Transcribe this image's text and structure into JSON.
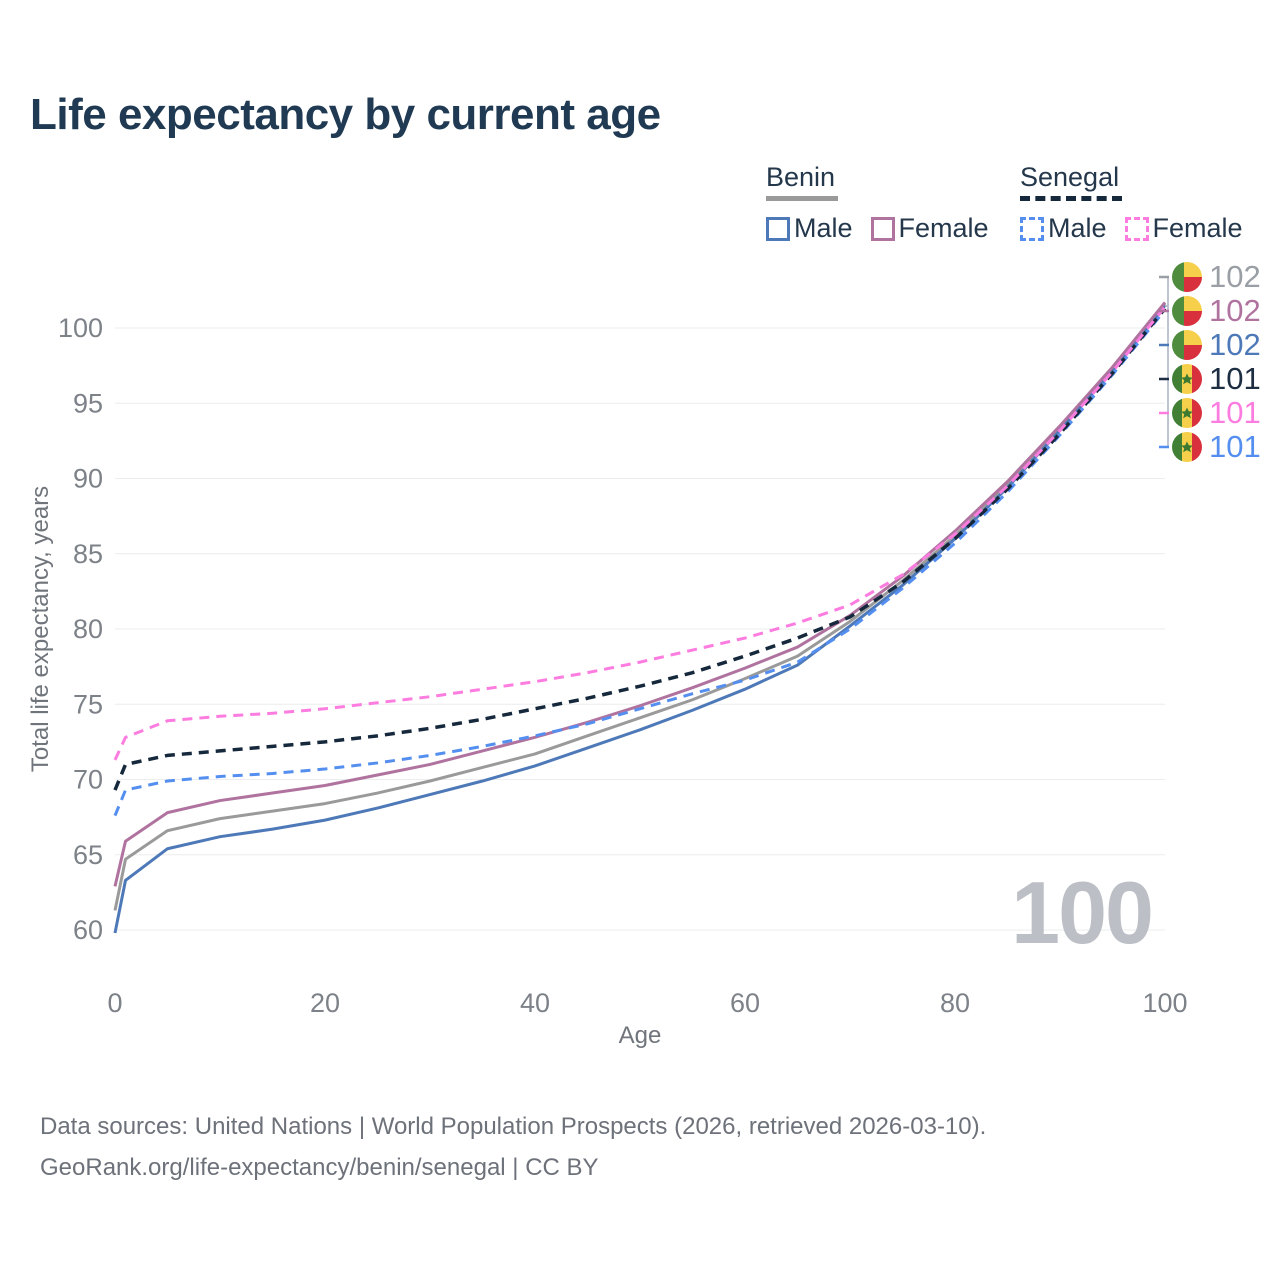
{
  "title": "Life expectancy by current age",
  "legend": {
    "groups": [
      {
        "label": "Benin",
        "line_style": "solid",
        "underline_color": "#9a9a9a",
        "items": [
          {
            "label": "Male",
            "color": "#4e79b8"
          },
          {
            "label": "Female",
            "color": "#b0739f"
          }
        ]
      },
      {
        "label": "Senegal",
        "line_style": "dashed",
        "underline_color": "#16283c",
        "items": [
          {
            "label": "Male",
            "color": "#548ff0"
          },
          {
            "label": "Female",
            "color": "#fc7ce0"
          }
        ]
      }
    ]
  },
  "chart_data": {
    "type": "line",
    "title": "Life expectancy by current age",
    "xlabel": "Age",
    "ylabel": "Total life expectancy, years",
    "xlim": [
      0,
      100
    ],
    "ylim": [
      60,
      100
    ],
    "xticks": [
      0,
      20,
      40,
      60,
      80,
      100
    ],
    "yticks": [
      60,
      65,
      70,
      75,
      80,
      85,
      90,
      95,
      100
    ],
    "grid": "horizontal",
    "legend_position": "top-right",
    "x": [
      0,
      1,
      5,
      10,
      15,
      20,
      25,
      30,
      35,
      40,
      45,
      50,
      55,
      60,
      65,
      70,
      75,
      80,
      85,
      90,
      95,
      100
    ],
    "series": [
      {
        "name": "Benin Both sexes",
        "country": "Benin",
        "sex": "Both",
        "color": "#9a9a9a",
        "dash": false,
        "width": 3,
        "values": [
          61.3,
          64.7,
          66.6,
          67.4,
          67.9,
          68.4,
          69.1,
          69.9,
          70.8,
          71.7,
          72.9,
          74.1,
          75.3,
          76.7,
          78.2,
          80.5,
          83.2,
          86.2,
          89.6,
          93.3,
          97.3,
          101.6
        ]
      },
      {
        "name": "Benin Male",
        "country": "Benin",
        "sex": "Male",
        "color": "#4e79b8",
        "dash": false,
        "width": 3,
        "values": [
          59.8,
          63.3,
          65.4,
          66.2,
          66.7,
          67.3,
          68.1,
          69.0,
          69.9,
          70.9,
          72.1,
          73.3,
          74.6,
          76.0,
          77.6,
          80.2,
          82.9,
          86.0,
          89.4,
          93.2,
          97.2,
          101.5
        ]
      },
      {
        "name": "Benin Female",
        "country": "Benin",
        "sex": "Female",
        "color": "#b0739f",
        "dash": false,
        "width": 3,
        "values": [
          62.9,
          65.9,
          67.8,
          68.6,
          69.1,
          69.6,
          70.3,
          71.0,
          71.9,
          72.8,
          73.8,
          74.9,
          76.1,
          77.4,
          78.8,
          80.9,
          83.5,
          86.5,
          89.8,
          93.5,
          97.4,
          101.7
        ]
      },
      {
        "name": "Senegal Male",
        "country": "Senegal",
        "sex": "Male",
        "color": "#548ff0",
        "dash": true,
        "width": 3,
        "values": [
          67.6,
          69.3,
          69.9,
          70.2,
          70.4,
          70.7,
          71.1,
          71.6,
          72.2,
          72.9,
          73.7,
          74.7,
          75.7,
          76.6,
          77.8,
          80.0,
          82.7,
          85.7,
          89.1,
          92.9,
          96.9,
          101.2
        ]
      },
      {
        "name": "Senegal Both sexes",
        "country": "Senegal",
        "sex": "Both",
        "color": "#16283c",
        "dash": true,
        "width": 3.5,
        "values": [
          69.3,
          71.0,
          71.6,
          71.9,
          72.2,
          72.5,
          72.9,
          73.4,
          74.0,
          74.7,
          75.4,
          76.2,
          77.1,
          78.2,
          79.4,
          80.8,
          83.1,
          86.0,
          89.3,
          93.0,
          97.0,
          101.3
        ]
      },
      {
        "name": "Senegal Female",
        "country": "Senegal",
        "sex": "Female",
        "color": "#fc7ce0",
        "dash": true,
        "width": 3,
        "values": [
          71.3,
          72.8,
          73.9,
          74.2,
          74.4,
          74.7,
          75.1,
          75.5,
          76.0,
          76.5,
          77.1,
          77.8,
          78.6,
          79.4,
          80.4,
          81.6,
          83.6,
          86.3,
          89.5,
          93.2,
          97.1,
          101.4
        ]
      }
    ]
  },
  "end_labels": [
    {
      "value": "102",
      "color": "#9a9fa6",
      "flag": "benin",
      "series": "Benin Both sexes"
    },
    {
      "value": "102",
      "color": "#b0739f",
      "flag": "benin",
      "series": "Benin Female"
    },
    {
      "value": "102",
      "color": "#4e79b8",
      "flag": "benin",
      "series": "Benin Male"
    },
    {
      "value": "101",
      "color": "#1d2d42",
      "flag": "senegal",
      "series": "Senegal Both sexes"
    },
    {
      "value": "101",
      "color": "#fc7ce0",
      "flag": "senegal",
      "series": "Senegal Female"
    },
    {
      "value": "101",
      "color": "#548ff0",
      "flag": "senegal",
      "series": "Senegal Male"
    }
  ],
  "watermark_age": "100",
  "footer": {
    "line1": "Data sources: United Nations | World Population Prospects (2026, retrieved 2026-03-10).",
    "line2": "GeoRank.org/life-expectancy/benin/senegal | CC BY"
  }
}
